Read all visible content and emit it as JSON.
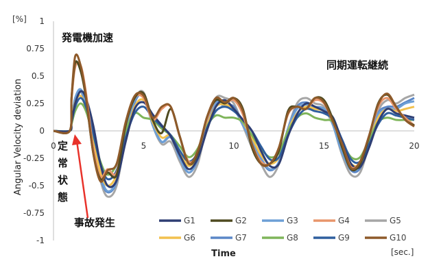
{
  "chart_data": {
    "type": "line",
    "ylabel": "Angular Velocity deviation",
    "xlabel": "Time",
    "y_unit": "[%]",
    "x_unit": "[sec.]",
    "xlim": [
      0,
      20
    ],
    "ylim": [
      -1,
      1
    ],
    "x_ticks": [
      {
        "value": 0,
        "label": "0"
      },
      {
        "value": 5,
        "label": "5"
      },
      {
        "value": 10,
        "label": "10"
      },
      {
        "value": 15,
        "label": "15"
      },
      {
        "value": 20,
        "label": "20"
      }
    ],
    "y_ticks": [
      {
        "value": 1,
        "label": "1"
      },
      {
        "value": 0.75,
        "label": "0.75"
      },
      {
        "value": 0.5,
        "label": "0.5"
      },
      {
        "value": 0.25,
        "label": "0.25"
      },
      {
        "value": 0,
        "label": "0"
      },
      {
        "value": -0.25,
        "label": "-0.25"
      },
      {
        "value": -0.5,
        "label": "-0.5"
      },
      {
        "value": -0.75,
        "label": "-0.75"
      },
      {
        "value": -1,
        "label": "-1"
      }
    ],
    "grid": false,
    "legend_position": "bottom-right",
    "annotations": [
      {
        "text": "発電機加速"
      },
      {
        "text": "同期運転継続"
      },
      {
        "text": "定常状態"
      },
      {
        "text": "事故発生"
      }
    ],
    "series": [
      {
        "name": "G1",
        "color": "#2e3e73",
        "x": [
          0,
          0.9,
          1,
          1.2,
          1.5,
          1.8,
          2.2,
          2.6,
          3,
          3.5,
          4,
          4.5,
          5,
          5.5,
          6,
          6.5,
          7,
          7.5,
          8,
          8.5,
          9,
          9.5,
          10,
          10.5,
          11,
          11.5,
          12,
          12.5,
          13,
          13.5,
          14,
          14.5,
          15,
          15.5,
          16,
          16.5,
          17,
          17.5,
          18,
          18.5,
          19,
          19.5,
          20
        ],
        "y": [
          0,
          0,
          0.08,
          0.25,
          0.36,
          0.3,
          0.05,
          -0.3,
          -0.5,
          -0.45,
          -0.1,
          0.2,
          0.26,
          0.15,
          0.05,
          -0.05,
          -0.22,
          -0.35,
          -0.25,
          0,
          0.22,
          0.28,
          0.2,
          0.1,
          0,
          -0.18,
          -0.32,
          -0.3,
          -0.05,
          0.15,
          0.25,
          0.22,
          0.18,
          0.12,
          -0.1,
          -0.3,
          -0.33,
          -0.15,
          0.08,
          0.2,
          0.16,
          0.14,
          0.12
        ]
      },
      {
        "name": "G2",
        "color": "#4f4a20",
        "x": [
          0,
          0.9,
          1,
          1.2,
          1.5,
          1.8,
          2.2,
          2.6,
          3,
          3.5,
          4,
          4.5,
          5,
          5.5,
          6,
          6.5,
          7,
          7.5,
          8,
          8.5,
          9,
          9.5,
          10,
          10.5,
          11,
          11.5,
          12,
          12.5,
          13,
          13.5,
          14,
          14.5,
          15,
          15.5,
          16,
          16.5,
          17,
          17.5,
          18,
          18.5,
          19,
          19.5,
          20
        ],
        "y": [
          0,
          0,
          0.3,
          0.62,
          0.55,
          0.3,
          -0.2,
          -0.44,
          -0.38,
          -0.4,
          0.05,
          0.3,
          0.34,
          0.1,
          -0.02,
          0.2,
          -0.05,
          -0.3,
          -0.2,
          0.12,
          0.28,
          0.25,
          0.3,
          0.2,
          -0.15,
          -0.3,
          -0.3,
          -0.18,
          0.18,
          0.22,
          0.2,
          0.3,
          0.28,
          0.1,
          -0.15,
          -0.35,
          -0.3,
          -0.05,
          0.25,
          0.33,
          0.22,
          0.1,
          0.05
        ]
      },
      {
        "name": "G3",
        "color": "#6d9fd6",
        "x": [
          0,
          0.9,
          1,
          1.2,
          1.5,
          1.8,
          2.2,
          2.6,
          3,
          3.5,
          4,
          4.5,
          5,
          5.5,
          6,
          6.5,
          7,
          7.5,
          8,
          8.5,
          9,
          9.5,
          10,
          10.5,
          11,
          11.5,
          12,
          12.5,
          13,
          13.5,
          14,
          14.5,
          15,
          15.5,
          16,
          16.5,
          17,
          17.5,
          18,
          18.5,
          19,
          19.5,
          20
        ],
        "y": [
          0,
          0,
          0.1,
          0.3,
          0.38,
          0.25,
          -0.05,
          -0.4,
          -0.55,
          -0.45,
          -0.05,
          0.28,
          0.32,
          0.05,
          -0.1,
          -0.05,
          -0.25,
          -0.38,
          -0.25,
          0.05,
          0.25,
          0.22,
          0.2,
          0.05,
          -0.1,
          -0.25,
          -0.35,
          -0.28,
          0.02,
          0.2,
          0.24,
          0.2,
          0.2,
          0.05,
          -0.2,
          -0.35,
          -0.32,
          -0.1,
          0.15,
          0.2,
          0.2,
          0.25,
          0.27
        ]
      },
      {
        "name": "G4",
        "color": "#e8956b",
        "x": [
          0,
          0.9,
          1,
          1.2,
          1.5,
          1.8,
          2.2,
          2.6,
          3,
          3.5,
          4,
          4.5,
          5,
          5.5,
          6,
          6.5,
          7,
          7.5,
          8,
          8.5,
          9,
          9.5,
          10,
          10.5,
          11,
          11.5,
          12,
          12.5,
          13,
          13.5,
          14,
          14.5,
          15,
          15.5,
          16,
          16.5,
          17,
          17.5,
          18,
          18.5,
          19,
          19.5,
          20
        ],
        "y": [
          0,
          0,
          0.28,
          0.58,
          0.6,
          0.35,
          -0.15,
          -0.42,
          -0.35,
          -0.38,
          0.05,
          0.3,
          0.3,
          0.1,
          0.2,
          0.22,
          -0.05,
          -0.28,
          -0.2,
          0.1,
          0.28,
          0.25,
          0.28,
          0.15,
          -0.12,
          -0.28,
          -0.3,
          -0.15,
          0.15,
          0.22,
          0.2,
          0.28,
          0.25,
          0.08,
          -0.12,
          -0.33,
          -0.28,
          -0.05,
          0.22,
          0.3,
          0.2,
          0.12,
          0.05
        ]
      },
      {
        "name": "G5",
        "color": "#a6a6a6",
        "x": [
          0,
          0.9,
          1,
          1.2,
          1.5,
          1.8,
          2.2,
          2.6,
          3,
          3.5,
          4,
          4.5,
          5,
          5.5,
          6,
          6.5,
          7,
          7.5,
          8,
          8.5,
          9,
          9.5,
          10,
          10.5,
          11,
          11.5,
          12,
          12.5,
          13,
          13.5,
          14,
          14.5,
          15,
          15.5,
          16,
          16.5,
          17,
          17.5,
          18,
          18.5,
          19,
          19.5,
          20
        ],
        "y": [
          0,
          0,
          0.12,
          0.3,
          0.36,
          0.22,
          -0.1,
          -0.45,
          -0.6,
          -0.5,
          -0.05,
          0.28,
          0.35,
          0.05,
          -0.12,
          -0.1,
          -0.28,
          -0.42,
          -0.3,
          0.05,
          0.3,
          0.3,
          0.25,
          0.05,
          -0.15,
          -0.3,
          -0.42,
          -0.3,
          0.02,
          0.25,
          0.3,
          0.25,
          0.22,
          0.05,
          -0.22,
          -0.4,
          -0.38,
          -0.12,
          0.18,
          0.28,
          0.25,
          0.3,
          0.33
        ]
      },
      {
        "name": "G6",
        "color": "#f2c14e",
        "x": [
          0,
          0.9,
          1,
          1.2,
          1.5,
          1.8,
          2.2,
          2.6,
          3,
          3.5,
          4,
          4.5,
          5,
          5.5,
          6,
          6.5,
          7,
          7.5,
          8,
          8.5,
          9,
          9.5,
          10,
          10.5,
          11,
          11.5,
          12,
          12.5,
          13,
          13.5,
          14,
          14.5,
          15,
          15.5,
          16,
          16.5,
          17,
          17.5,
          18,
          18.5,
          19,
          19.5,
          20
        ],
        "y": [
          0,
          0,
          0.1,
          0.26,
          0.32,
          0.2,
          -0.08,
          -0.38,
          -0.5,
          -0.4,
          -0.05,
          0.22,
          0.28,
          0.08,
          -0.06,
          -0.04,
          -0.2,
          -0.32,
          -0.22,
          0.04,
          0.22,
          0.24,
          0.2,
          0.08,
          -0.06,
          -0.22,
          -0.3,
          -0.24,
          0,
          0.16,
          0.22,
          0.2,
          0.18,
          0.08,
          -0.14,
          -0.3,
          -0.3,
          -0.1,
          0.12,
          0.2,
          0.18,
          0.2,
          0.22
        ]
      },
      {
        "name": "G7",
        "color": "#5b87c7",
        "x": [
          0,
          0.9,
          1,
          1.2,
          1.5,
          1.8,
          2.2,
          2.6,
          3,
          3.5,
          4,
          4.5,
          5,
          5.5,
          6,
          6.5,
          7,
          7.5,
          8,
          8.5,
          9,
          9.5,
          10,
          10.5,
          11,
          11.5,
          12,
          12.5,
          13,
          13.5,
          14,
          14.5,
          15,
          15.5,
          16,
          16.5,
          17,
          17.5,
          18,
          18.5,
          19,
          19.5,
          20
        ],
        "y": [
          0,
          0,
          0.1,
          0.28,
          0.37,
          0.24,
          -0.06,
          -0.42,
          -0.56,
          -0.46,
          -0.04,
          0.26,
          0.33,
          0.06,
          -0.1,
          -0.06,
          -0.24,
          -0.38,
          -0.26,
          0.04,
          0.26,
          0.24,
          0.22,
          0.06,
          -0.1,
          -0.26,
          -0.36,
          -0.28,
          0.02,
          0.22,
          0.26,
          0.22,
          0.2,
          0.06,
          -0.18,
          -0.36,
          -0.34,
          -0.1,
          0.16,
          0.22,
          0.22,
          0.26,
          0.3
        ]
      },
      {
        "name": "G8",
        "color": "#7fb55a",
        "x": [
          0,
          0.9,
          1,
          1.2,
          1.5,
          1.8,
          2.2,
          2.6,
          3,
          3.5,
          4,
          4.5,
          5,
          5.5,
          6,
          6.5,
          7,
          7.5,
          8,
          8.5,
          9,
          9.5,
          10,
          10.5,
          11,
          11.5,
          12,
          12.5,
          13,
          13.5,
          14,
          14.5,
          15,
          15.5,
          16,
          16.5,
          17,
          17.5,
          18,
          18.5,
          19,
          19.5,
          20
        ],
        "y": [
          0,
          0,
          0.06,
          0.18,
          0.25,
          0.18,
          -0.04,
          -0.28,
          -0.4,
          -0.3,
          0,
          0.16,
          0.12,
          0.1,
          0.02,
          -0.04,
          -0.14,
          -0.24,
          -0.16,
          0.04,
          0.14,
          0.12,
          0.12,
          0.08,
          -0.04,
          -0.16,
          -0.24,
          -0.2,
          0,
          0.12,
          0.16,
          0.12,
          0.1,
          0.08,
          -0.1,
          -0.24,
          -0.24,
          -0.08,
          0.08,
          0.12,
          0.1,
          0.1,
          0.1
        ]
      },
      {
        "name": "G9",
        "color": "#2f5f9e",
        "x": [
          0,
          0.9,
          1,
          1.2,
          1.5,
          1.8,
          2.2,
          2.6,
          3,
          3.5,
          4,
          4.5,
          5,
          5.5,
          6,
          6.5,
          7,
          7.5,
          8,
          8.5,
          9,
          9.5,
          10,
          10.5,
          11,
          11.5,
          12,
          12.5,
          13,
          13.5,
          14,
          14.5,
          15,
          15.5,
          16,
          16.5,
          17,
          17.5,
          18,
          18.5,
          19,
          19.5,
          20
        ],
        "y": [
          0,
          0,
          0.08,
          0.22,
          0.3,
          0.22,
          -0.02,
          -0.3,
          -0.44,
          -0.36,
          -0.06,
          0.16,
          0.22,
          0.12,
          0.04,
          -0.04,
          -0.18,
          -0.28,
          -0.2,
          0.02,
          0.18,
          0.22,
          0.18,
          0.1,
          0,
          -0.14,
          -0.26,
          -0.24,
          -0.04,
          0.12,
          0.2,
          0.18,
          0.16,
          0.1,
          -0.08,
          -0.26,
          -0.28,
          -0.12,
          0.06,
          0.16,
          0.14,
          0.12,
          0.1
        ]
      },
      {
        "name": "G10",
        "color": "#8e5a2a",
        "x": [
          0,
          0.9,
          1,
          1.2,
          1.5,
          1.8,
          2.2,
          2.6,
          3,
          3.5,
          4,
          4.5,
          5,
          5.5,
          6,
          6.5,
          7,
          7.5,
          8,
          8.5,
          9,
          9.5,
          10,
          10.5,
          11,
          11.5,
          12,
          12.5,
          13,
          13.5,
          14,
          14.5,
          15,
          15.5,
          16,
          16.5,
          17,
          17.5,
          18,
          18.5,
          19,
          19.5,
          20
        ],
        "y": [
          0,
          0,
          0.3,
          0.68,
          0.6,
          0.32,
          -0.2,
          -0.46,
          -0.36,
          -0.3,
          0.08,
          0.32,
          0.32,
          0.12,
          0.22,
          0.22,
          -0.05,
          -0.3,
          -0.18,
          0.12,
          0.3,
          0.26,
          0.3,
          0.18,
          -0.12,
          -0.3,
          -0.3,
          -0.15,
          0.16,
          0.22,
          0.2,
          0.3,
          0.26,
          0.08,
          -0.12,
          -0.34,
          -0.28,
          -0.04,
          0.24,
          0.34,
          0.22,
          0.1,
          0.04
        ]
      }
    ]
  }
}
